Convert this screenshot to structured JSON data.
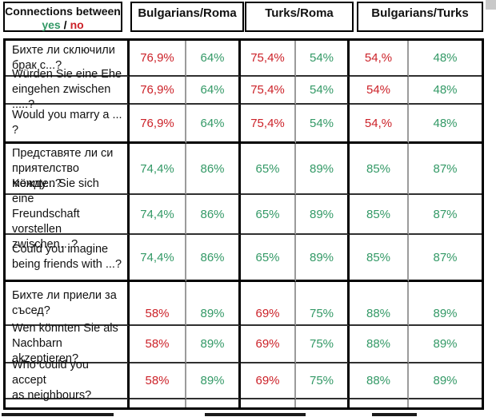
{
  "header": {
    "title": "Connections between",
    "yes_label": "yes",
    "separator": "/",
    "no_label": "no",
    "groups": [
      "Bulgarians/Roma",
      "Turks/Roma",
      "Bulgarians/Turks"
    ]
  },
  "colors": {
    "yes_green": "#339966",
    "no_red": "#cc2229",
    "border_black": "#000000"
  },
  "chart_data": {
    "type": "table",
    "title": "Connections between (yes / no)",
    "column_groups": [
      "Bulgarians/Roma",
      "Turks/Roma",
      "Bulgarians/Turks"
    ],
    "subcolumns_per_group": [
      "yes",
      "no"
    ]
  },
  "rows": [
    {
      "question": "Бихте ли сключили\nбрак с...?",
      "values": [
        {
          "text": "76,9%",
          "tone": "red"
        },
        {
          "text": "64%",
          "tone": "green"
        },
        {
          "text": "75,4%",
          "tone": "red"
        },
        {
          "text": "54%",
          "tone": "green"
        },
        {
          "text": "54,%",
          "tone": "red"
        },
        {
          "text": "48%",
          "tone": "green"
        }
      ]
    },
    {
      "question": "Würden Sie eine Ehe\neingehen zwischen .....?",
      "values": [
        {
          "text": "76,9%",
          "tone": "red"
        },
        {
          "text": "64%",
          "tone": "green"
        },
        {
          "text": "75,4%",
          "tone": "red"
        },
        {
          "text": "54%",
          "tone": "green"
        },
        {
          "text": "54%",
          "tone": "red"
        },
        {
          "text": "48%",
          "tone": "green"
        }
      ]
    },
    {
      "question": "Would you marry a ... ?",
      "values": [
        {
          "text": "76,9%",
          "tone": "red"
        },
        {
          "text": "64%",
          "tone": "green"
        },
        {
          "text": "75,4%",
          "tone": "red"
        },
        {
          "text": "54%",
          "tone": "green"
        },
        {
          "text": "54,%",
          "tone": "red"
        },
        {
          "text": "48%",
          "tone": "green"
        }
      ]
    },
    {
      "question": "Представяте ли си\nприятелство между...?",
      "values": [
        {
          "text": "74,4%",
          "tone": "green"
        },
        {
          "text": "86%",
          "tone": "green"
        },
        {
          "text": "65%",
          "tone": "green"
        },
        {
          "text": "89%",
          "tone": "green"
        },
        {
          "text": "85%",
          "tone": "green"
        },
        {
          "text": "87%",
          "tone": "green"
        }
      ]
    },
    {
      "question": "Könnten Sie sich eine\nFreundschaft vorstellen\nzwischen…?",
      "values": [
        {
          "text": "74,4%",
          "tone": "green"
        },
        {
          "text": "86%",
          "tone": "green"
        },
        {
          "text": "65%",
          "tone": "green"
        },
        {
          "text": "89%",
          "tone": "green"
        },
        {
          "text": "85%",
          "tone": "green"
        },
        {
          "text": "87%",
          "tone": "green"
        }
      ]
    },
    {
      "question": "Could you imagine\nbeing friends with ...?",
      "values": [
        {
          "text": "74,4%",
          "tone": "green"
        },
        {
          "text": "86%",
          "tone": "green"
        },
        {
          "text": "65%",
          "tone": "green"
        },
        {
          "text": "89%",
          "tone": "green"
        },
        {
          "text": "85%",
          "tone": "green"
        },
        {
          "text": "87%",
          "tone": "green"
        }
      ]
    },
    {
      "question": "Бихте ли приели за\nсъсед?",
      "values": [
        {
          "text": "58%",
          "tone": "red"
        },
        {
          "text": "89%",
          "tone": "green"
        },
        {
          "text": "69%",
          "tone": "red"
        },
        {
          "text": "75%",
          "tone": "green"
        },
        {
          "text": "88%",
          "tone": "green"
        },
        {
          "text": "89%",
          "tone": "green"
        }
      ]
    },
    {
      "question": "Wen könnten Sie als\nNachbarn akzeptieren?",
      "values": [
        {
          "text": "58%",
          "tone": "red"
        },
        {
          "text": "89%",
          "tone": "green"
        },
        {
          "text": "69%",
          "tone": "red"
        },
        {
          "text": "75%",
          "tone": "green"
        },
        {
          "text": "88%",
          "tone": "green"
        },
        {
          "text": "89%",
          "tone": "green"
        }
      ]
    },
    {
      "question": "Who could you accept\nas neighbours?",
      "values": [
        {
          "text": "58%",
          "tone": "red"
        },
        {
          "text": "89%",
          "tone": "green"
        },
        {
          "text": "69%",
          "tone": "red"
        },
        {
          "text": "75%",
          "tone": "green"
        },
        {
          "text": "88%",
          "tone": "green"
        },
        {
          "text": "89%",
          "tone": "green"
        }
      ]
    }
  ]
}
